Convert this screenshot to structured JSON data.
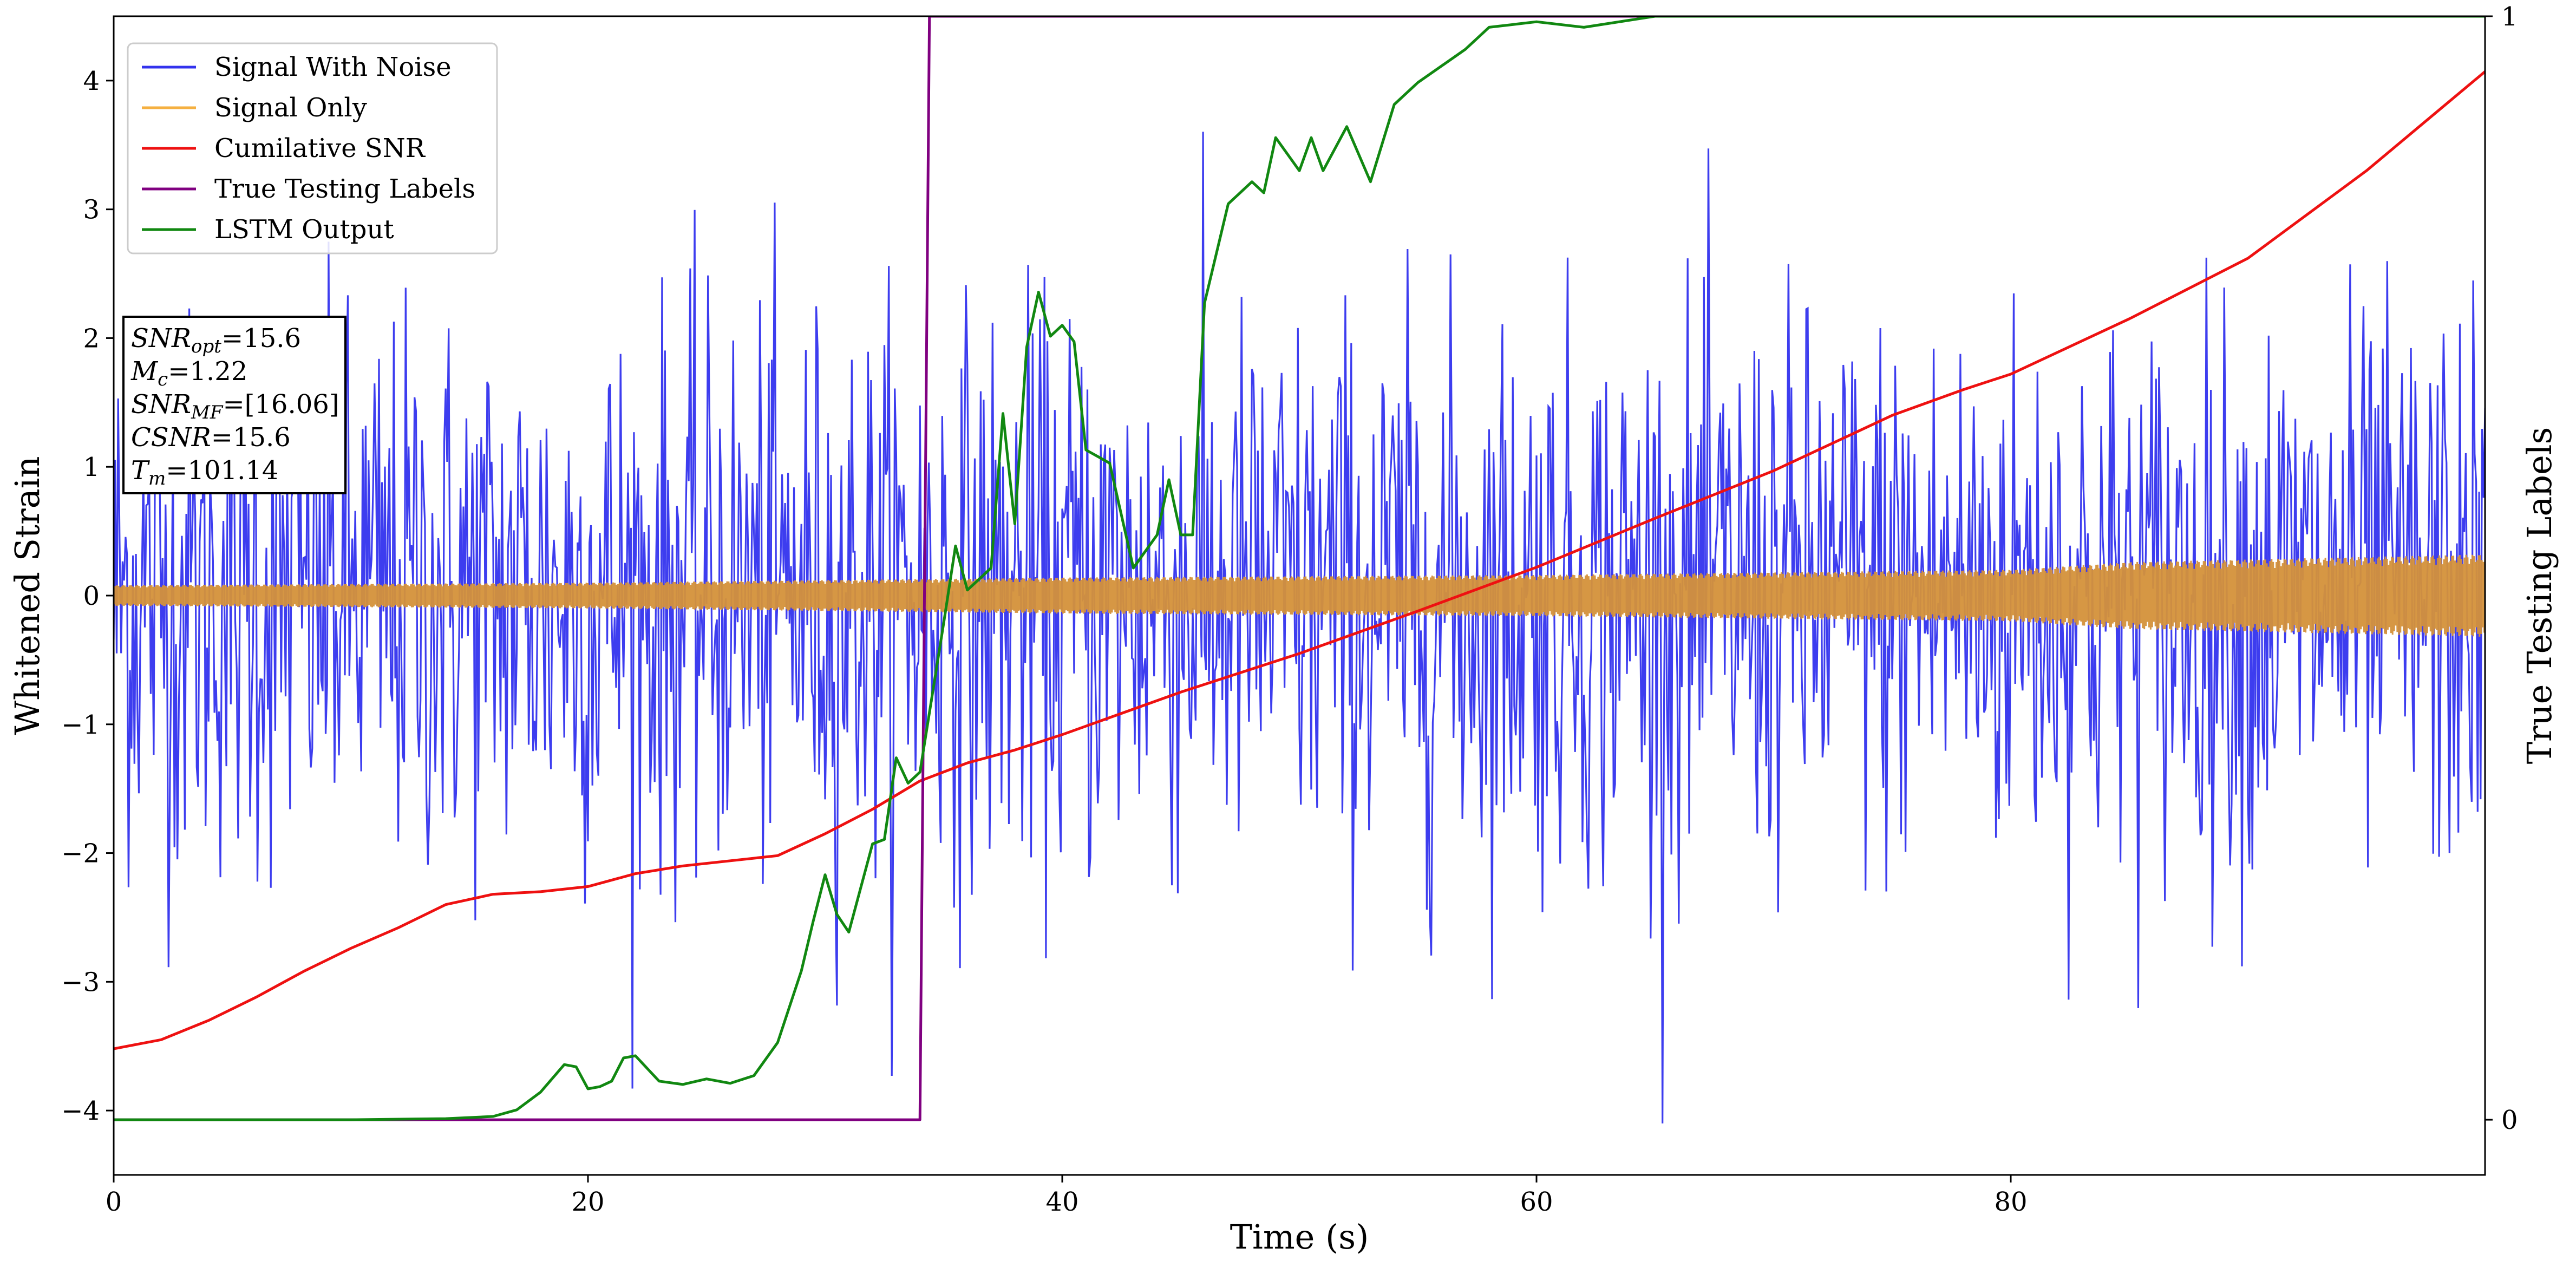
{
  "chart_data": {
    "type": "line",
    "xlabel": "Time (s)",
    "ylabel": "Whitened Strain",
    "y2label": "True Testing Labels",
    "xlim": [
      0,
      100
    ],
    "ylim": [
      -4.5,
      4.5
    ],
    "y2lim": [
      -0.05,
      1.0
    ],
    "x_ticks": [
      0,
      20,
      40,
      60,
      80
    ],
    "y_ticks": [
      -4,
      -3,
      -2,
      -1,
      0,
      1,
      2,
      3,
      4
    ],
    "y_tick_labels": [
      "−4",
      "−3",
      "−2",
      "−1",
      "0",
      "1",
      "2",
      "3",
      "4"
    ],
    "y2_ticks": [
      0,
      1
    ],
    "legend_position": "top-left",
    "grid": false,
    "series": [
      {
        "name": "Signal With Noise",
        "axis": "left",
        "color": "#3333ee",
        "note_shape": "dense noise, approx ±3 whitened strain, sampled representatively",
        "amplitude": 1.1,
        "points": 1600
      },
      {
        "name": "Signal Only",
        "axis": "left",
        "color": "#f5b041",
        "envelope": {
          "x": [
            0,
            10,
            20,
            30,
            40,
            50,
            60,
            70,
            80,
            85,
            90,
            95,
            100
          ],
          "amp": [
            0.08,
            0.09,
            0.1,
            0.12,
            0.14,
            0.15,
            0.16,
            0.18,
            0.2,
            0.26,
            0.28,
            0.3,
            0.32
          ]
        }
      },
      {
        "name": "Cumilative SNR",
        "axis": "left",
        "color": "#ee1111",
        "x": [
          0,
          2,
          4,
          6,
          8,
          10,
          12,
          14,
          16,
          18,
          20,
          22,
          24,
          26,
          28,
          30,
          32,
          34,
          36,
          38,
          40,
          45,
          50,
          55,
          60,
          65,
          70,
          75,
          78,
          80,
          85,
          90,
          95,
          100
        ],
        "y": [
          -3.52,
          -3.45,
          -3.3,
          -3.12,
          -2.92,
          -2.74,
          -2.58,
          -2.4,
          -2.32,
          -2.3,
          -2.26,
          -2.16,
          -2.1,
          -2.06,
          -2.02,
          -1.85,
          -1.66,
          -1.44,
          -1.3,
          -1.2,
          -1.08,
          -0.75,
          -0.45,
          -0.12,
          0.22,
          0.6,
          0.97,
          1.4,
          1.6,
          1.72,
          2.15,
          2.62,
          3.3,
          4.07
        ]
      },
      {
        "name": "True Testing Labels",
        "axis": "right",
        "color": "#800080",
        "x": [
          0,
          34,
          34.4,
          100
        ],
        "y": [
          0,
          0,
          1,
          1
        ]
      },
      {
        "name": "LSTM Output",
        "axis": "right",
        "color": "#118811",
        "x": [
          0,
          10,
          14,
          16,
          17,
          18,
          19,
          19.5,
          20,
          20.5,
          21,
          21.5,
          22,
          23,
          24,
          25,
          26,
          27,
          28,
          29,
          29.5,
          30,
          30.5,
          31,
          32,
          32.5,
          33,
          33.5,
          34,
          35,
          35.5,
          36,
          36.5,
          37,
          37.5,
          38,
          38.5,
          39,
          39.5,
          40,
          40.5,
          41,
          42,
          43,
          44,
          44.5,
          45,
          45.5,
          46,
          47,
          48,
          48.5,
          49,
          50,
          50.5,
          51,
          52,
          53,
          54,
          55,
          56,
          57,
          58,
          60,
          62,
          65,
          70,
          80,
          100
        ],
        "y": [
          0,
          0,
          0.001,
          0.003,
          0.009,
          0.025,
          0.05,
          0.048,
          0.028,
          0.03,
          0.035,
          0.056,
          0.058,
          0.035,
          0.032,
          0.037,
          0.033,
          0.04,
          0.07,
          0.135,
          0.18,
          0.222,
          0.186,
          0.17,
          0.25,
          0.254,
          0.328,
          0.305,
          0.315,
          0.45,
          0.52,
          0.48,
          0.49,
          0.5,
          0.64,
          0.54,
          0.7,
          0.75,
          0.71,
          0.72,
          0.705,
          0.607,
          0.595,
          0.5,
          0.53,
          0.58,
          0.53,
          0.53,
          0.74,
          0.83,
          0.85,
          0.84,
          0.89,
          0.86,
          0.89,
          0.86,
          0.9,
          0.85,
          0.92,
          0.94,
          0.955,
          0.97,
          0.99,
          0.995,
          0.99,
          1.0,
          1.0,
          1.0,
          1.0
        ]
      }
    ],
    "annotation": [
      {
        "var": "SNR",
        "sub": "opt",
        "value": "=15.6"
      },
      {
        "var": "M",
        "sub": "c",
        "value": "=1.22"
      },
      {
        "var": "SNR",
        "sub": "MF",
        "value": "=[16.06]"
      },
      {
        "var": "CSNR",
        "sub": "",
        "value": "=15.6"
      },
      {
        "var": "T",
        "sub": "m",
        "value": "=101.14"
      }
    ]
  }
}
